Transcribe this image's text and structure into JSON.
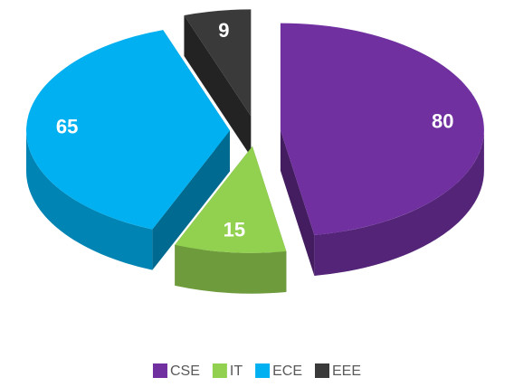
{
  "chart_data": {
    "type": "pie",
    "categories": [
      "CSE",
      "IT",
      "ECE",
      "EEE"
    ],
    "values": [
      80,
      15,
      65,
      9
    ],
    "colors": [
      "#7030a0",
      "#92d050",
      "#00b0f0",
      "#3a3a3a"
    ],
    "legend": "bottom"
  }
}
